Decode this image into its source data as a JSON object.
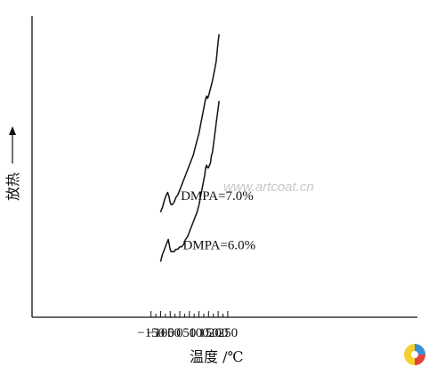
{
  "chart_data": {
    "type": "line",
    "xlabel": "温度 /℃",
    "ylabel": "放热",
    "x_ticks": [
      -150,
      -100,
      -50,
      0,
      50,
      100,
      150,
      200,
      250
    ],
    "xlim": [
      -150,
      250
    ],
    "y_ticks_shown": false,
    "grid": false,
    "legend": "none",
    "series": [
      {
        "name": "DMPA=7.0%",
        "label_at": [
          5,
          0.36
        ],
        "x": [
          -100,
          -90,
          -80,
          -70,
          -63,
          -55,
          -50,
          -45,
          -40,
          -30,
          -20,
          -10,
          0,
          10,
          20,
          30,
          40,
          50,
          60,
          70,
          80,
          90,
          100,
          110,
          120,
          130,
          135,
          140,
          145,
          150,
          160,
          170,
          175,
          180,
          185,
          190,
          195,
          200,
          205
        ],
        "y": [
          0.31,
          0.33,
          0.36,
          0.38,
          0.39,
          0.37,
          0.35,
          0.34,
          0.34,
          0.35,
          0.37,
          0.38,
          0.4,
          0.42,
          0.44,
          0.46,
          0.48,
          0.5,
          0.52,
          0.54,
          0.57,
          0.6,
          0.63,
          0.67,
          0.71,
          0.75,
          0.77,
          0.78,
          0.77,
          0.78,
          0.81,
          0.84,
          0.86,
          0.88,
          0.9,
          0.92,
          0.96,
          1.0,
          1.03
        ]
      },
      {
        "name": "DMPA=6.0%",
        "label_at": [
          16,
          0.16
        ],
        "x": [
          -100,
          -90,
          -80,
          -70,
          -60,
          -55,
          -50,
          -45,
          -40,
          -30,
          -20,
          -10,
          0,
          10,
          20,
          30,
          40,
          50,
          60,
          70,
          80,
          90,
          100,
          110,
          120,
          130,
          135,
          140,
          145,
          150,
          160,
          165,
          170,
          175,
          180,
          185,
          190,
          195,
          200,
          205
        ],
        "y": [
          0.11,
          0.14,
          0.16,
          0.18,
          0.2,
          0.18,
          0.16,
          0.15,
          0.15,
          0.15,
          0.16,
          0.16,
          0.17,
          0.17,
          0.18,
          0.2,
          0.21,
          0.23,
          0.25,
          0.27,
          0.29,
          0.31,
          0.34,
          0.38,
          0.42,
          0.46,
          0.49,
          0.5,
          0.49,
          0.49,
          0.51,
          0.54,
          0.55,
          0.58,
          0.61,
          0.64,
          0.67,
          0.7,
          0.73,
          0.76
        ]
      }
    ]
  },
  "watermark": "www.artcoat.cn"
}
